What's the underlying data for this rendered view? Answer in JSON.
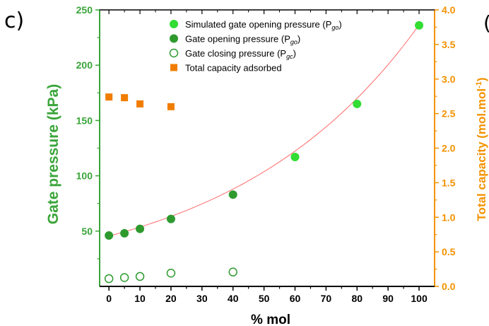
{
  "panel_label": "c)",
  "next_panel_label": "(",
  "chart_data": {
    "type": "scatter",
    "xlabel": "% mol",
    "ylabel_left": "Gate pressure (kPa)",
    "ylabel_right": "Total capacity (mol.mol⁻¹)",
    "xlim": [
      -3,
      105
    ],
    "x_ticks": [
      "0",
      "10",
      "20",
      "30",
      "40",
      "50",
      "60",
      "70",
      "80",
      "90",
      "100"
    ],
    "ylim_left": [
      0,
      250
    ],
    "y_ticks_left": [
      "50",
      "100",
      "150",
      "200",
      "250"
    ],
    "ylim_right": [
      0,
      4.0
    ],
    "y_ticks_right": [
      "0.0",
      "0.5",
      "1.0",
      "1.5",
      "2.0",
      "2.5",
      "3.0",
      "3.5",
      "4.0"
    ],
    "colors": {
      "left_axis": "#3aa53a",
      "right_axis": "#f39200",
      "simulated": "#33dd33",
      "opening": "#2e9a2e",
      "closing": "#2e9a2e",
      "capacity": "#f07d00",
      "fit": "#ff6a6a"
    },
    "legend_position": "top-center",
    "grid": false,
    "series": [
      {
        "name": "Simulated gate opening pressure (P",
        "name_sub": "go",
        "name_suffix": ")",
        "axis": "left",
        "marker": "filled-circle",
        "x": [
          60,
          80,
          100
        ],
        "y": [
          117,
          165,
          236
        ]
      },
      {
        "name": "Gate opening pressure (P",
        "name_sub": "go",
        "name_suffix": ")",
        "axis": "left",
        "marker": "filled-circle",
        "x": [
          0,
          5,
          10,
          20,
          40
        ],
        "y": [
          46,
          48,
          52,
          61,
          83
        ]
      },
      {
        "name": "Gate closing pressure (P",
        "name_sub": "gc",
        "name_suffix": ")",
        "axis": "left",
        "marker": "open-circle",
        "x": [
          0,
          5,
          10,
          20,
          40
        ],
        "y": [
          7,
          8,
          9,
          12,
          13
        ]
      },
      {
        "name": "Total capacity adsorbed",
        "name_sub": "",
        "name_suffix": "",
        "axis": "right",
        "marker": "filled-square",
        "x": [
          0,
          5,
          10,
          20
        ],
        "y": [
          2.74,
          2.73,
          2.64,
          2.6
        ]
      }
    ],
    "fit_curve": {
      "axis": "left",
      "model": "exponential",
      "a": 45.5,
      "b": 0.01648,
      "x_range": [
        0,
        100
      ]
    }
  }
}
